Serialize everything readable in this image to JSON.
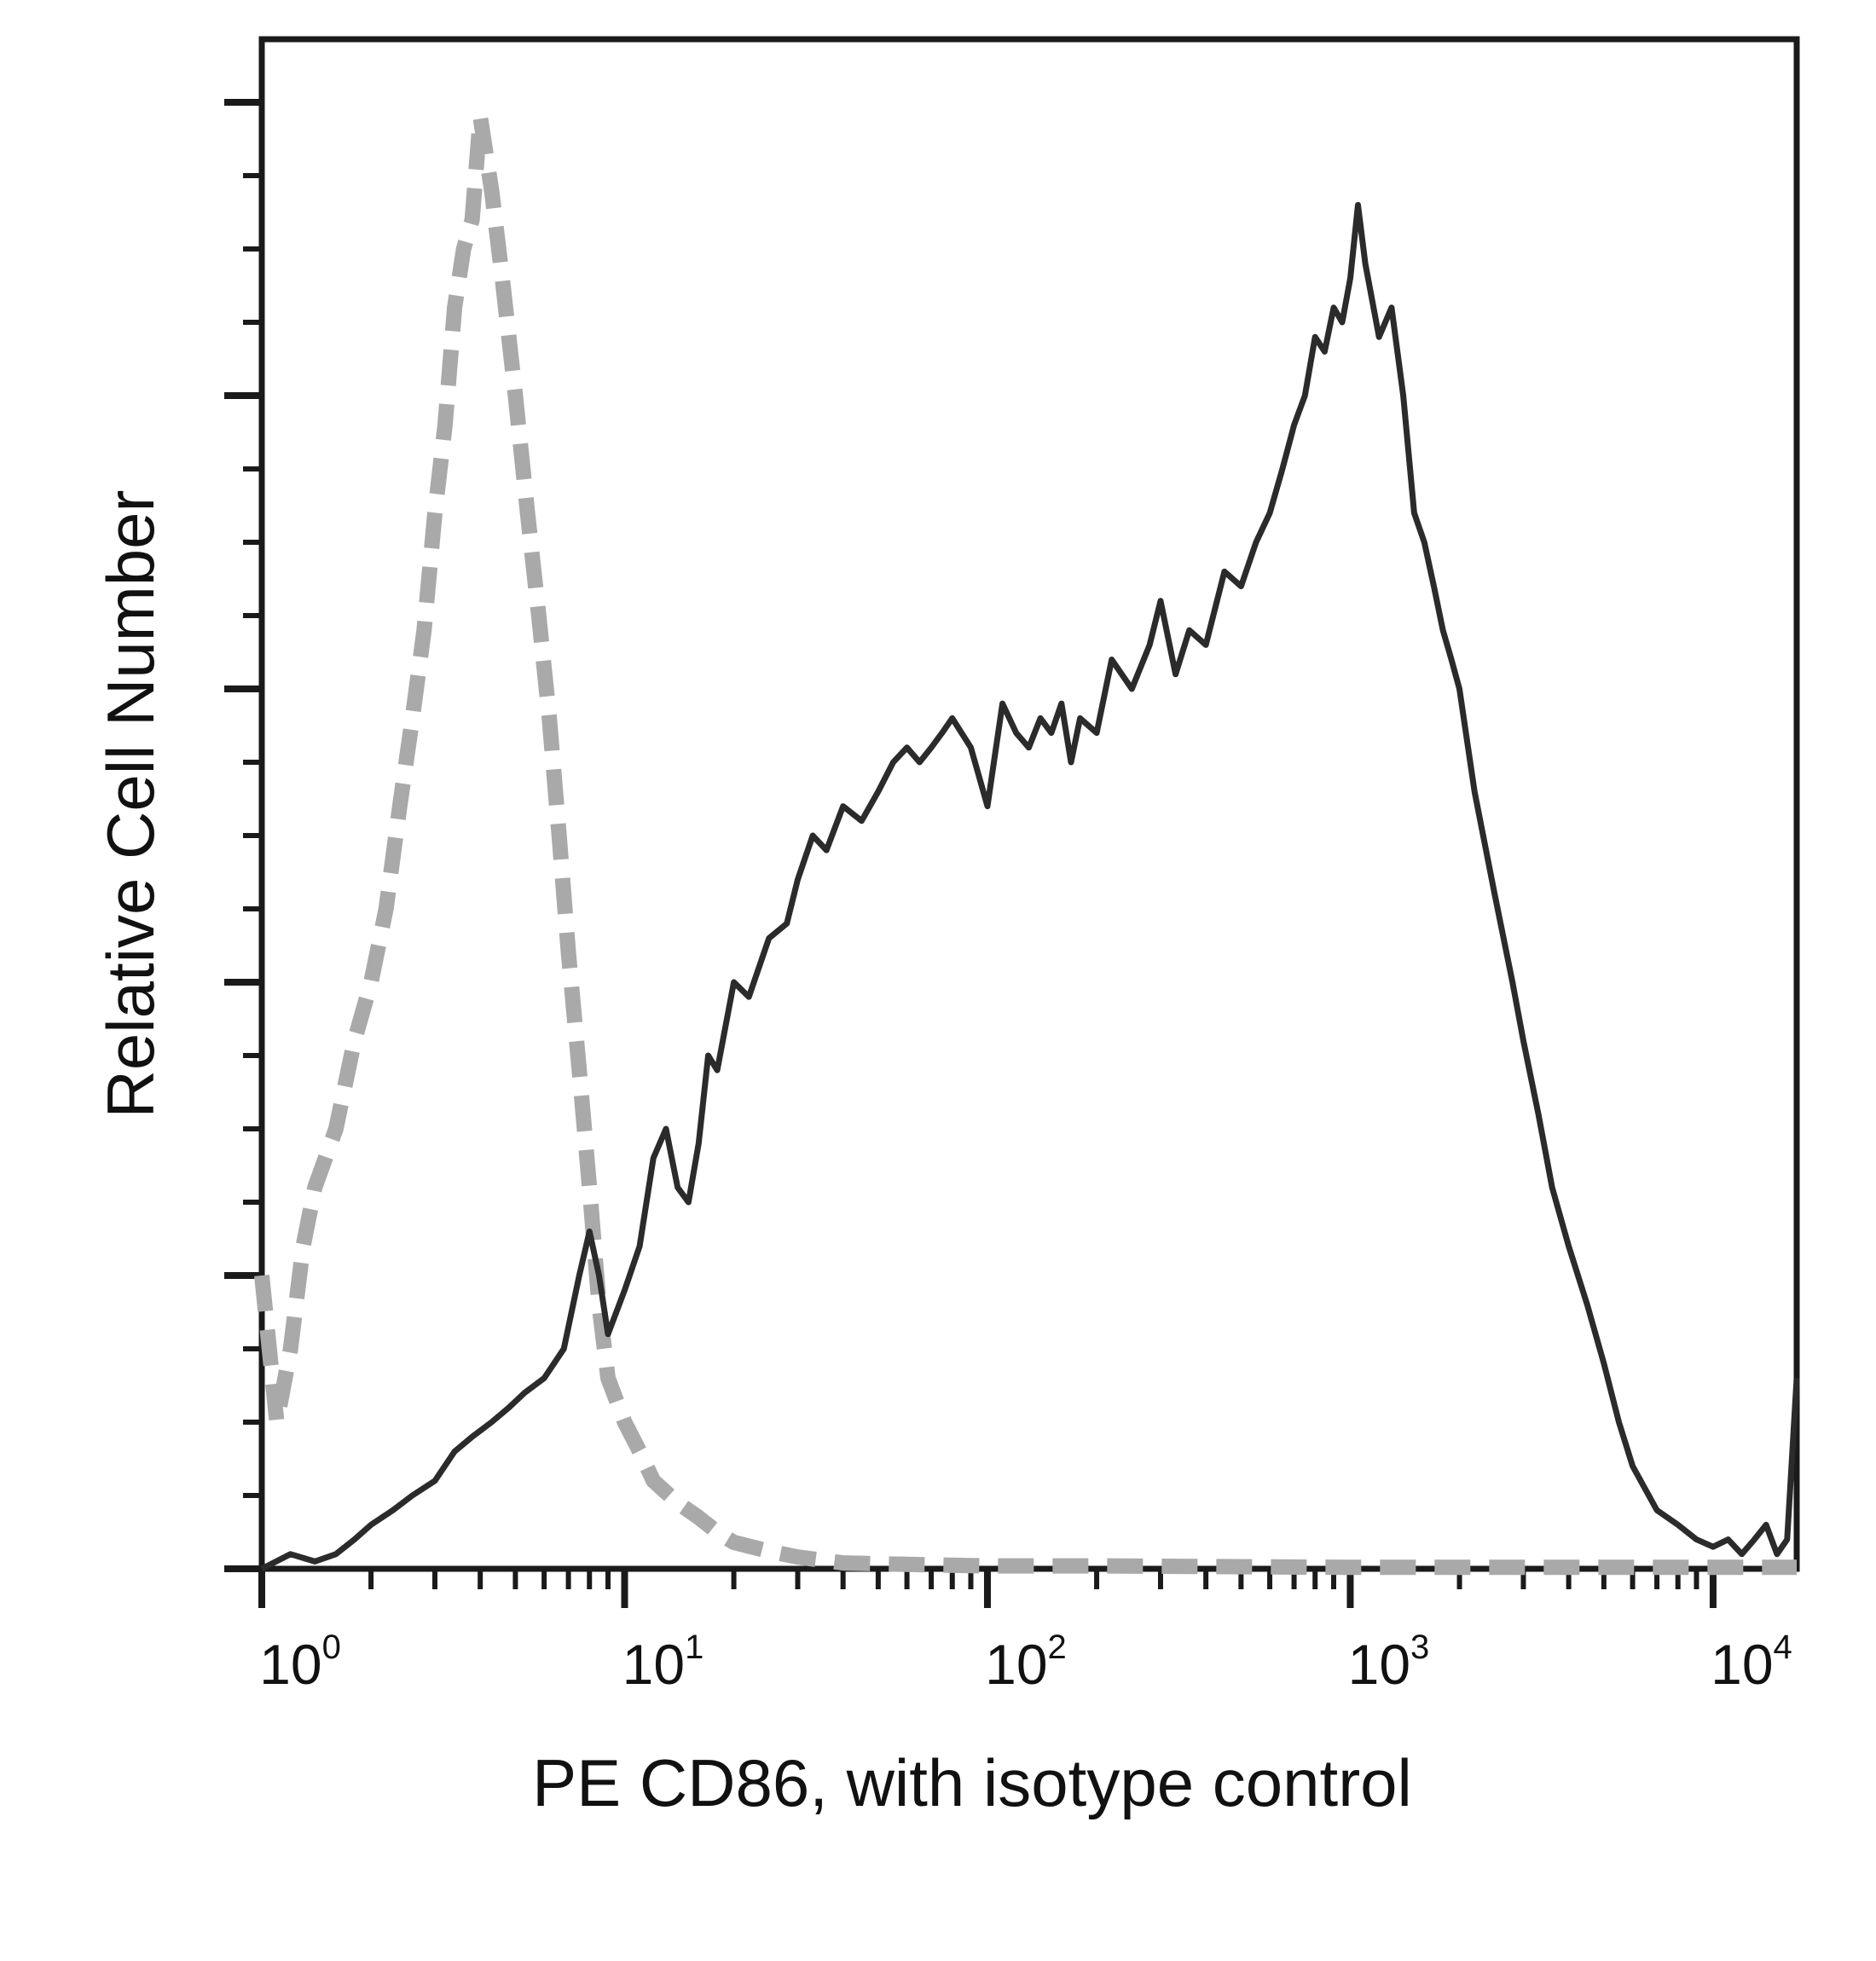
{
  "chart_data": {
    "type": "line",
    "title": "",
    "xlabel": "PE CD86, with isotype control",
    "ylabel": "Relative Cell Number",
    "x_scale": "log",
    "xlim": [
      1,
      17000
    ],
    "ylim": [
      0,
      1.0
    ],
    "y_tick_labels_shown": false,
    "x_ticks": [
      {
        "base": "10",
        "exp": "0",
        "value": 1
      },
      {
        "base": "10",
        "exp": "1",
        "value": 10
      },
      {
        "base": "10",
        "exp": "2",
        "value": 100
      },
      {
        "base": "10",
        "exp": "3",
        "value": 1000
      },
      {
        "base": "10",
        "exp": "4",
        "value": 10000
      }
    ],
    "grid": false,
    "series": [
      {
        "style": "dashed",
        "color": "#a9a9a9",
        "x": [
          1.0,
          1.1,
          1.2,
          1.3,
          1.4,
          1.6,
          1.8,
          2.0,
          2.2,
          2.4,
          2.6,
          2.8,
          3.0,
          3.2,
          3.4,
          3.6,
          3.8,
          4.0,
          4.3,
          4.6,
          5.0,
          5.4,
          5.8,
          6.2,
          6.6,
          7.0,
          7.5,
          8.0,
          8.5,
          9.0,
          10,
          11,
          12,
          14,
          16,
          18,
          20,
          25,
          30,
          40,
          60,
          100,
          200,
          1000,
          10000,
          17000
        ],
        "y": [
          0.2,
          0.1,
          0.15,
          0.22,
          0.26,
          0.3,
          0.36,
          0.4,
          0.45,
          0.52,
          0.58,
          0.64,
          0.72,
          0.78,
          0.86,
          0.9,
          0.92,
          0.99,
          0.94,
          0.88,
          0.8,
          0.72,
          0.65,
          0.58,
          0.5,
          0.42,
          0.34,
          0.26,
          0.18,
          0.13,
          0.1,
          0.08,
          0.06,
          0.045,
          0.035,
          0.025,
          0.018,
          0.012,
          0.008,
          0.004,
          0.003,
          0.002,
          0.002,
          0.001,
          0.001,
          0.001
        ]
      },
      {
        "style": "solid",
        "color": "#2b2b2b",
        "x": [
          1.0,
          1.2,
          1.4,
          1.6,
          1.8,
          2.0,
          2.3,
          2.6,
          3.0,
          3.4,
          3.8,
          4.3,
          4.8,
          5.3,
          6.0,
          6.8,
          7.5,
          8.0,
          8.5,
          9.0,
          10,
          11,
          12,
          13,
          14,
          15,
          16,
          17,
          18,
          20,
          22,
          25,
          28,
          30,
          33,
          36,
          40,
          45,
          50,
          55,
          60,
          65,
          70,
          75,
          80,
          90,
          100,
          110,
          120,
          130,
          140,
          150,
          160,
          170,
          180,
          200,
          220,
          250,
          280,
          300,
          330,
          360,
          400,
          450,
          500,
          550,
          600,
          650,
          700,
          750,
          800,
          850,
          900,
          950,
          1000,
          1050,
          1100,
          1200,
          1300,
          1400,
          1500,
          1600,
          1700,
          1800,
          1900,
          2000,
          2200,
          2500,
          2800,
          3000,
          3300,
          3600,
          4000,
          4500,
          5000,
          5500,
          6000,
          7000,
          8000,
          9000,
          10000,
          11000,
          12000,
          13000,
          14000,
          15000,
          16000,
          17000
        ],
        "y": [
          0.0,
          0.01,
          0.005,
          0.01,
          0.02,
          0.03,
          0.04,
          0.05,
          0.06,
          0.08,
          0.09,
          0.1,
          0.11,
          0.12,
          0.13,
          0.15,
          0.2,
          0.23,
          0.2,
          0.16,
          0.19,
          0.22,
          0.28,
          0.3,
          0.26,
          0.25,
          0.29,
          0.35,
          0.34,
          0.4,
          0.39,
          0.43,
          0.44,
          0.47,
          0.5,
          0.49,
          0.52,
          0.51,
          0.53,
          0.55,
          0.56,
          0.55,
          0.56,
          0.57,
          0.58,
          0.56,
          0.52,
          0.59,
          0.57,
          0.56,
          0.58,
          0.57,
          0.59,
          0.55,
          0.58,
          0.57,
          0.62,
          0.6,
          0.63,
          0.66,
          0.61,
          0.64,
          0.63,
          0.68,
          0.67,
          0.7,
          0.72,
          0.75,
          0.78,
          0.8,
          0.84,
          0.83,
          0.86,
          0.85,
          0.88,
          0.93,
          0.89,
          0.84,
          0.86,
          0.8,
          0.72,
          0.7,
          0.67,
          0.64,
          0.62,
          0.6,
          0.53,
          0.46,
          0.4,
          0.36,
          0.31,
          0.26,
          0.22,
          0.18,
          0.14,
          0.1,
          0.07,
          0.04,
          0.03,
          0.02,
          0.015,
          0.02,
          0.01,
          0.02,
          0.03,
          0.01,
          0.02,
          0.13
        ]
      }
    ]
  }
}
